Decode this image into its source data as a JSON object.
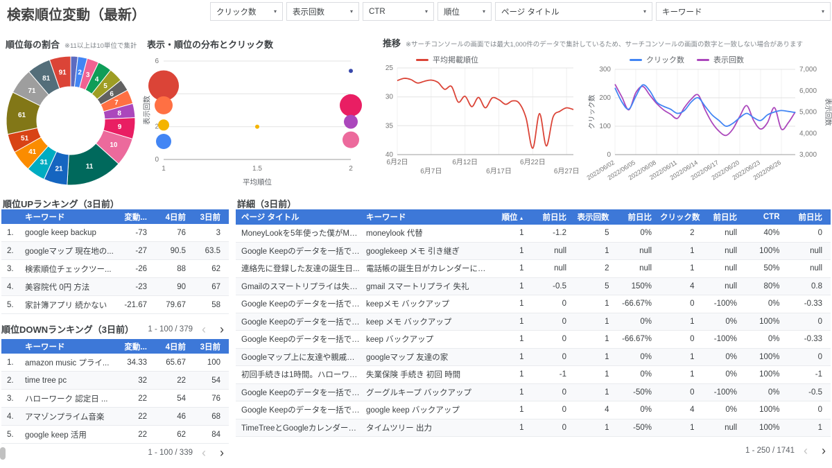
{
  "header": {
    "title": "検索順位変動（最新）",
    "filters": [
      {
        "label": "クリック数"
      },
      {
        "label": "表示回数"
      },
      {
        "label": "CTR"
      },
      {
        "label": "順位"
      },
      {
        "label": "ページ タイトル"
      },
      {
        "label": "キーワード"
      }
    ]
  },
  "sections": {
    "donut_title": "順位毎の割合",
    "donut_note": "※11以上は10単位で集計",
    "bubble_title": "表示・順位の分布とクリック数",
    "trend_title": "推移",
    "trend_note": "※サーチコンソールの画面では最大1,000件のデータで集計しているため、サーチコンソールの画面の数字と一致しない場合があります",
    "up_title": "順位UPランキング（3日前）",
    "down_title": "順位DOWNランキング（3日前）",
    "detail_title": "詳細（3日前）"
  },
  "chart_data": [
    {
      "id": "rank-share-donut",
      "type": "pie",
      "title": "順位毎の割合",
      "labels": [
        "1",
        "2",
        "3",
        "4",
        "5",
        "6",
        "7",
        "8",
        "9",
        "10",
        "11",
        "21",
        "31",
        "41",
        "51",
        "61",
        "71",
        "81",
        "91"
      ],
      "values": [
        1.5,
        2,
        2.5,
        3,
        3,
        2.5,
        3,
        3,
        4.5,
        6,
        12,
        5,
        4,
        4.5,
        4,
        9,
        5.5,
        5,
        4.5
      ],
      "colors": [
        "#5C6BC0",
        "#4285F4",
        "#F06292",
        "#0F9D58",
        "#9E9D24",
        "#616161",
        "#FF7043",
        "#AB47BC",
        "#E91E63",
        "#EC6A9C",
        "#00695C",
        "#1565C0",
        "#00ACC1",
        "#FB8C00",
        "#D84315",
        "#827717",
        "#9E9E9E",
        "#546E7A",
        "#DB4437"
      ]
    },
    {
      "id": "distribution-bubble",
      "type": "scatter",
      "title": "表示・順位の分布とクリック数",
      "xlabel": "平均順位",
      "ylabel": "表示回数",
      "xlim": [
        1,
        2
      ],
      "ylim": [
        0,
        6
      ],
      "xticks": [
        "1",
        "1.5",
        "2"
      ],
      "yticks": [
        0,
        2,
        4,
        6
      ],
      "points": [
        {
          "x": 1,
          "y": 4.5,
          "r": 22,
          "color": "#DB4437"
        },
        {
          "x": 1,
          "y": 3.3,
          "r": 13,
          "color": "#FF7043"
        },
        {
          "x": 1,
          "y": 2.1,
          "r": 8,
          "color": "#F4B400"
        },
        {
          "x": 1,
          "y": 1.1,
          "r": 11,
          "color": "#4285F4"
        },
        {
          "x": 1.5,
          "y": 2.0,
          "r": 3,
          "color": "#F4B400"
        },
        {
          "x": 2,
          "y": 5.4,
          "r": 3,
          "color": "#3949AB"
        },
        {
          "x": 2,
          "y": 3.3,
          "r": 16,
          "color": "#E91E63"
        },
        {
          "x": 2,
          "y": 2.3,
          "r": 10,
          "color": "#AB47BC"
        },
        {
          "x": 2,
          "y": 1.2,
          "r": 12,
          "color": "#EC6A9C"
        }
      ]
    },
    {
      "id": "avg-position-trend",
      "type": "line",
      "series": [
        {
          "name": "平均掲載順位",
          "color": "#DB4437",
          "values": [
            27.2,
            26.8,
            27.0,
            27.6,
            27.3,
            27.1,
            27.5,
            28.7,
            28.2,
            30.9,
            29.9,
            31.7,
            30.1,
            31.9,
            30.2,
            30.5,
            31.3,
            30.7,
            31.1,
            33.6,
            38.9,
            32.9,
            38.5,
            33.5,
            32.5,
            31.9,
            32.2
          ]
        }
      ],
      "x_labels": [
        "6月2日",
        "6月7日",
        "6月12日",
        "6月17日",
        "6月22日",
        "6月27日"
      ],
      "x_label_idx": [
        0,
        5,
        10,
        15,
        20,
        25
      ],
      "ylim": [
        25,
        40
      ],
      "yticks": [
        25,
        30,
        35,
        40
      ],
      "y_inverted": true
    },
    {
      "id": "clicks-impressions-trend",
      "type": "line",
      "series": [
        {
          "name": "クリック数",
          "color": "#4285F4",
          "axis": "left",
          "values": [
            235,
            185,
            160,
            205,
            245,
            225,
            185,
            170,
            160,
            145,
            155,
            185,
            200,
            170,
            140,
            120,
            100,
            110,
            130,
            145,
            130,
            120,
            140,
            150,
            155,
            152,
            148
          ]
        },
        {
          "name": "表示回数",
          "color": "#AB47BC",
          "axis": "right",
          "values": [
            6300,
            5700,
            5100,
            5900,
            6200,
            5800,
            5400,
            5100,
            4900,
            4700,
            5200,
            5600,
            5800,
            5100,
            4500,
            4100,
            3900,
            4200,
            4800,
            5300,
            4600,
            4200,
            4500,
            5200,
            4200,
            4500,
            5000
          ]
        }
      ],
      "x_labels": [
        "2022/06/02",
        "2022/06/05",
        "2022/06/08",
        "2022/06/11",
        "2022/06/14",
        "2022/06/17",
        "2022/06/20",
        "2022/06/23",
        "2022/06/26"
      ],
      "x_label_idx": [
        0,
        3,
        6,
        9,
        12,
        15,
        18,
        21,
        24
      ],
      "left_ylim": [
        0,
        300
      ],
      "left_yticks": [
        0,
        100,
        200,
        300
      ],
      "left_axis_label": "クリック数",
      "right_ylim": [
        3000,
        7000
      ],
      "right_yticks": [
        3000,
        4000,
        5000,
        6000,
        7000
      ],
      "right_axis_label": "表示回数"
    }
  ],
  "tables": {
    "up": {
      "headers": [
        "キーワード",
        "変動...",
        "4日前",
        "3日前"
      ],
      "rows": [
        [
          "1.",
          "google keep backup",
          "-73",
          "76",
          "3"
        ],
        [
          "2.",
          "googleマップ 現在地の...",
          "-27",
          "90.5",
          "63.5"
        ],
        [
          "3.",
          "検索順位チェックツー...",
          "-26",
          "88",
          "62"
        ],
        [
          "4.",
          "美容院代 0円 方法",
          "-23",
          "90",
          "67"
        ],
        [
          "5.",
          "家計簿アプリ 続かない",
          "-21.67",
          "79.67",
          "58"
        ]
      ],
      "pagination": "1 - 100 / 379"
    },
    "down": {
      "headers": [
        "キーワード",
        "変動...",
        "4日前",
        "3日前"
      ],
      "rows": [
        [
          "1.",
          "amazon music プライ...",
          "34.33",
          "65.67",
          "100"
        ],
        [
          "2.",
          "time tree pc",
          "32",
          "22",
          "54"
        ],
        [
          "3.",
          "ハローワーク 認定日 ...",
          "22",
          "54",
          "76"
        ],
        [
          "4.",
          "アマゾンプライム音楽",
          "22",
          "46",
          "68"
        ],
        [
          "5.",
          "google keep 活用",
          "22",
          "62",
          "84"
        ]
      ],
      "pagination": "1 - 100 / 339"
    },
    "detail": {
      "headers": [
        "ページ タイトル",
        "キーワード",
        "順位",
        "前日比",
        "表示回数",
        "前日比",
        "クリック数",
        "前日比",
        "CTR",
        "前日比"
      ],
      "sort_arrow": "▲",
      "rows": [
        [
          "MoneyLookを5年使った僕がMon...",
          "moneylook 代替",
          "1",
          "-1.2",
          "5",
          "0%",
          "2",
          "null",
          "40%",
          "0"
        ],
        [
          "Google Keepのデータを一括でバ...",
          "googlekeep メモ 引き継ぎ",
          "1",
          "null",
          "1",
          "null",
          "1",
          "null",
          "100%",
          "null"
        ],
        [
          "連絡先に登録した友達の誕生日...",
          "電話帳の誕生日がカレンダーに反映さ...",
          "1",
          "null",
          "2",
          "null",
          "1",
          "null",
          "50%",
          "null"
        ],
        [
          "Gmailのスマートリプライは失礼...",
          "gmail スマートリプライ 失礼",
          "1",
          "-0.5",
          "5",
          "150%",
          "4",
          "null",
          "80%",
          "0.8"
        ],
        [
          "Google Keepのデータを一括でバ...",
          "keepメモ バックアップ",
          "1",
          "0",
          "1",
          "-66.67%",
          "0",
          "-100%",
          "0%",
          "-0.33"
        ],
        [
          "Google Keepのデータを一括でバ...",
          "keep メモ バックアップ",
          "1",
          "0",
          "1",
          "0%",
          "1",
          "0%",
          "100%",
          "0"
        ],
        [
          "Google Keepのデータを一括でバ...",
          "keep バックアップ",
          "1",
          "0",
          "1",
          "-66.67%",
          "0",
          "-100%",
          "0%",
          "-0.33"
        ],
        [
          "Googleマップ上に友達や親戚の...",
          "googleマップ 友達の家",
          "1",
          "0",
          "1",
          "0%",
          "1",
          "0%",
          "100%",
          "0"
        ],
        [
          "初回手続きは1時間。ハローワー...",
          "失業保険 手続き 初回 時間",
          "1",
          "-1",
          "1",
          "0%",
          "1",
          "0%",
          "100%",
          "-1"
        ],
        [
          "Google Keepのデータを一括でバ...",
          "グーグルキープ バックアップ",
          "1",
          "0",
          "1",
          "-50%",
          "0",
          "-100%",
          "0%",
          "-0.5"
        ],
        [
          "Google Keepのデータを一括でバ...",
          "google keep バックアップ",
          "1",
          "0",
          "4",
          "0%",
          "4",
          "0%",
          "100%",
          "0"
        ],
        [
          "TimeTreeとGoogleカレンダーを...",
          "タイムツリー 出力",
          "1",
          "0",
          "1",
          "-50%",
          "1",
          "null",
          "100%",
          "1"
        ]
      ],
      "pagination": "1 - 250 / 1741"
    }
  }
}
